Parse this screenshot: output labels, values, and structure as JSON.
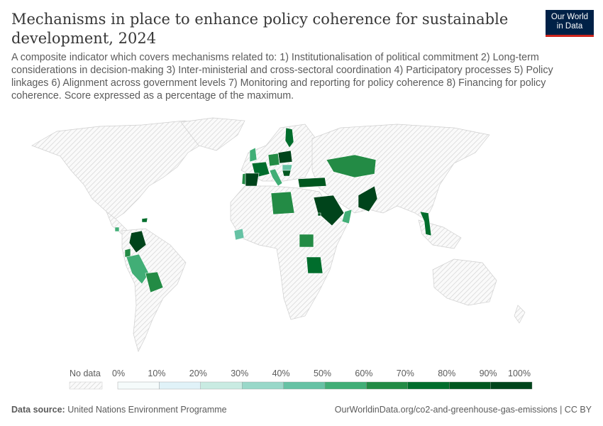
{
  "title": "Mechanisms in place to enhance policy coherence for sustainable development, 2024",
  "subtitle": "A composite indicator which covers mechanisms related to: 1) Institutionalisation of political commitment 2) Long-term considerations in decision-making 3) Inter-ministerial and cross-sectoral coordination 4) Participatory processes 5) Policy linkages 6) Alignment across government levels 7) Monitoring and reporting for policy coherence 8) Financing for policy coherence. Score expressed as a percentage of the maximum.",
  "logo": {
    "line1": "Our World",
    "line2": "in Data"
  },
  "legend": {
    "no_data_label": "No data",
    "ticks": [
      "0%",
      "10%",
      "20%",
      "30%",
      "40%",
      "50%",
      "60%",
      "70%",
      "80%",
      "90%",
      "100%"
    ],
    "colors": [
      "#f5fbfb",
      "#e0f2f8",
      "#c9ebe2",
      "#99d8c9",
      "#66c2a4",
      "#41ae76",
      "#238b45",
      "#006d2c",
      "#00571f",
      "#00441b"
    ],
    "no_data_color": "#e0e0e0"
  },
  "map": {
    "region_values": [
      55,
      95,
      75,
      65,
      65,
      95,
      50,
      40,
      85,
      75,
      80,
      65,
      60,
      95,
      50,
      95,
      70,
      95,
      65,
      55,
      60,
      70,
      50,
      40,
      65,
      70,
      80
    ]
  },
  "footer": {
    "source_label": "Data source:",
    "source": "United Nations Environment Programme",
    "url": "OurWorldinData.org/co2-and-greenhouse-gas-emissions | CC BY"
  }
}
